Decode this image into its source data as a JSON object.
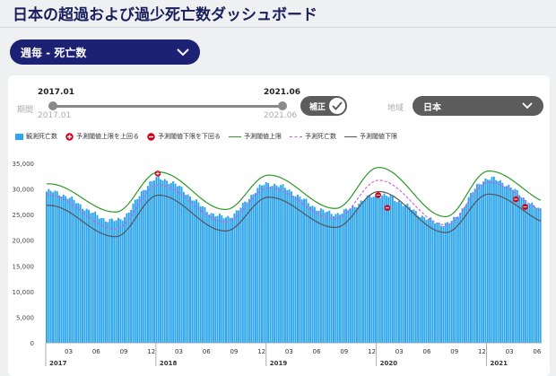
{
  "page": {
    "title": "日本の超過および過少死亡数ダッシュボード"
  },
  "main_select": {
    "value": "週毎 - 死亡数"
  },
  "controls": {
    "period_label": "期間",
    "start_date": "2017.01",
    "end_date": "2021.06",
    "start_date_sub": "2017.01",
    "end_date_sub": "2021.06",
    "adjust_label": "補正",
    "adjust_on": true,
    "region_label": "地域",
    "region_value": "日本"
  },
  "legend": {
    "observed": "観測死亡数",
    "above": "予測閾値上限を上回る",
    "below": "予測閾値下限を下回る",
    "upper": "予測閾値上限",
    "expected": "予測死亡数",
    "lower": "予測閾値下限"
  },
  "colors": {
    "bar": "#2ea6ee",
    "upper": "#2a9a2a",
    "expected": "#d35bd3",
    "lower": "#555555",
    "marker": "#d0021b",
    "title": "#1a1f5c"
  },
  "chart_data": {
    "type": "bar",
    "frequency": "weekly",
    "x_start": "2017-01",
    "x_end": "2021-06",
    "ylim": [
      0,
      35000
    ],
    "yticks": [
      "0",
      "5,000",
      "10,000",
      "15,000",
      "20,000",
      "25,000",
      "30,000",
      "35,000"
    ],
    "month_ticks": [
      "03",
      "06",
      "09",
      "12",
      "03",
      "06",
      "09",
      "12",
      "03",
      "06",
      "09",
      "12",
      "03",
      "06",
      "09",
      "12",
      "03",
      "06"
    ],
    "year_labels": [
      "2017",
      "2018",
      "2019",
      "2020",
      "2021"
    ],
    "seasonal_anchors": {
      "observed": [
        29500,
        23800,
        32000,
        24500,
        31000,
        25200,
        28800,
        23200,
        32000,
        25000
      ],
      "upper": [
        31000,
        25500,
        33300,
        26000,
        32700,
        26200,
        34200,
        24600,
        33500,
        27000
      ],
      "expected": [
        28800,
        22200,
        30800,
        23600,
        30200,
        24200,
        31700,
        23000,
        31300,
        25000
      ],
      "lower": [
        26800,
        20700,
        28800,
        21800,
        28400,
        22500,
        29500,
        21500,
        29000,
        23000
      ]
    },
    "above_markers": [
      {
        "x": "2018-01",
        "y": 33000
      }
    ],
    "below_markers": [
      {
        "x": "2020-01",
        "y": 28800
      },
      {
        "x": "2020-02",
        "y": 26300
      },
      {
        "x": "2021-04",
        "y": 28000
      },
      {
        "x": "2021-05",
        "y": 26500
      }
    ]
  }
}
